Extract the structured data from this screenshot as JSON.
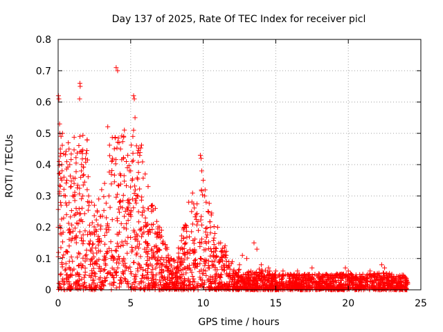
{
  "chart_data": {
    "type": "scatter",
    "title": "Day 137 of 2025, Rate Of TEC Index for receiver picl",
    "xlabel": "GPS time / hours",
    "ylabel": "ROTI / TECUs",
    "xlim": [
      0,
      25
    ],
    "ylim": [
      0,
      0.8
    ],
    "xticks": [
      0,
      5,
      10,
      15,
      20,
      25
    ],
    "yticks": [
      0,
      0.1,
      0.2,
      0.3,
      0.4,
      0.5,
      0.6,
      0.7,
      0.8
    ],
    "xtick_labels": [
      "0",
      "5",
      "10",
      "15",
      "20",
      "25"
    ],
    "ytick_labels": [
      "0",
      "0.1",
      "0.2",
      "0.3",
      "0.4",
      "0.5",
      "0.6",
      "0.7",
      "0.8"
    ],
    "grid": true,
    "marker": "+",
    "color": "#ff0000",
    "series": [
      {
        "name": "ROTI",
        "points": [
          [
            0.02,
            0.62
          ],
          [
            0.05,
            0.61
          ],
          [
            0.1,
            0.53
          ],
          [
            0.12,
            0.5
          ],
          [
            0.2,
            0.49
          ],
          [
            0.3,
            0.5
          ],
          [
            0.15,
            0.45
          ],
          [
            0.25,
            0.4
          ],
          [
            0.4,
            0.36
          ],
          [
            0.5,
            0.3
          ],
          [
            0.6,
            0.35
          ],
          [
            0.7,
            0.47
          ],
          [
            0.75,
            0.45
          ],
          [
            0.8,
            0.4
          ],
          [
            0.9,
            0.33
          ],
          [
            1.0,
            0.3
          ],
          [
            1.5,
            0.66
          ],
          [
            1.52,
            0.65
          ],
          [
            1.48,
            0.61
          ],
          [
            1.5,
            0.49
          ],
          [
            1.6,
            0.38
          ],
          [
            1.7,
            0.3
          ],
          [
            2.0,
            0.32
          ],
          [
            2.1,
            0.3
          ],
          [
            2.3,
            0.28
          ],
          [
            2.5,
            0.27
          ],
          [
            2.8,
            0.29
          ],
          [
            3.0,
            0.32
          ],
          [
            3.2,
            0.34
          ],
          [
            3.5,
            0.3
          ],
          [
            3.7,
            0.41
          ],
          [
            3.75,
            0.42
          ],
          [
            4.0,
            0.71
          ],
          [
            4.1,
            0.7
          ],
          [
            4.2,
            0.47
          ],
          [
            4.3,
            0.45
          ],
          [
            4.5,
            0.42
          ],
          [
            4.7,
            0.41
          ],
          [
            4.8,
            0.43
          ],
          [
            5.0,
            0.38
          ],
          [
            5.1,
            0.35
          ],
          [
            5.2,
            0.62
          ],
          [
            5.25,
            0.61
          ],
          [
            5.3,
            0.55
          ],
          [
            5.2,
            0.51
          ],
          [
            5.15,
            0.49
          ],
          [
            5.4,
            0.46
          ],
          [
            5.5,
            0.3
          ],
          [
            6.0,
            0.37
          ],
          [
            6.2,
            0.33
          ],
          [
            6.5,
            0.27
          ],
          [
            6.7,
            0.26
          ],
          [
            7.0,
            0.2
          ],
          [
            7.2,
            0.15
          ],
          [
            7.5,
            0.13
          ],
          [
            7.8,
            0.1
          ],
          [
            8.0,
            0.09
          ],
          [
            8.5,
            0.08
          ],
          [
            8.8,
            0.15
          ],
          [
            8.85,
            0.2
          ],
          [
            9.0,
            0.28
          ],
          [
            9.2,
            0.25
          ],
          [
            9.5,
            0.24
          ],
          [
            9.8,
            0.43
          ],
          [
            9.85,
            0.42
          ],
          [
            9.9,
            0.38
          ],
          [
            10.0,
            0.35
          ],
          [
            10.1,
            0.3
          ],
          [
            10.2,
            0.28
          ],
          [
            10.5,
            0.2
          ],
          [
            10.8,
            0.18
          ],
          [
            11.0,
            0.2
          ],
          [
            11.2,
            0.15
          ],
          [
            11.5,
            0.12
          ],
          [
            12.0,
            0.09
          ],
          [
            12.5,
            0.08
          ],
          [
            12.7,
            0.11
          ],
          [
            13.0,
            0.1
          ],
          [
            13.5,
            0.15
          ],
          [
            13.7,
            0.13
          ],
          [
            14.0,
            0.08
          ],
          [
            14.5,
            0.07
          ],
          [
            15.0,
            0.06
          ],
          [
            15.5,
            0.06
          ],
          [
            16.0,
            0.05
          ],
          [
            16.5,
            0.06
          ],
          [
            17.0,
            0.05
          ],
          [
            17.5,
            0.07
          ],
          [
            18.0,
            0.05
          ],
          [
            18.5,
            0.05
          ],
          [
            19.0,
            0.04
          ],
          [
            19.5,
            0.05
          ],
          [
            19.8,
            0.07
          ],
          [
            20.0,
            0.06
          ],
          [
            20.5,
            0.04
          ],
          [
            21.0,
            0.05
          ],
          [
            21.5,
            0.06
          ],
          [
            22.0,
            0.05
          ],
          [
            22.3,
            0.08
          ],
          [
            22.5,
            0.07
          ],
          [
            23.0,
            0.05
          ],
          [
            23.5,
            0.04
          ],
          [
            24.0,
            0.03
          ]
        ]
      }
    ]
  }
}
